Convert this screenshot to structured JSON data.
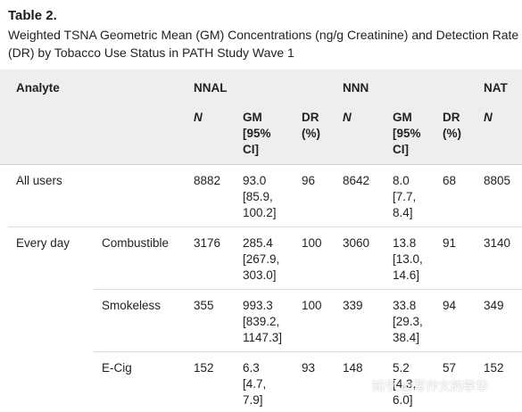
{
  "title": "Table 2.",
  "caption": "Weighted TSNA Geometric Mean (GM) Concentrations (ng/g Creatinine) and Detection Rate (DR) by Tobacco Use Status in PATH Study Wave 1",
  "header": {
    "analyte": "Analyte",
    "groups": [
      "NNAL",
      "NNN",
      "NAT"
    ],
    "sub": {
      "n": "N",
      "gm": "GM\n[95%\nCI]",
      "dr": "DR\n(%)"
    }
  },
  "rows": [
    {
      "label": "All users",
      "sublabel": "",
      "nnal": {
        "n": "8882",
        "gm": "93.0\n[85.9,\n100.2]",
        "dr": "96"
      },
      "nnn": {
        "n": "8642",
        "gm": "8.0\n[7.7,\n8.4]",
        "dr": "68"
      },
      "nat": {
        "n": "8805"
      }
    },
    {
      "label": "Every day",
      "sublabel": "Combustible",
      "nnal": {
        "n": "3176",
        "gm": "285.4\n[267.9,\n303.0]",
        "dr": "100"
      },
      "nnn": {
        "n": "3060",
        "gm": "13.8\n[13.0,\n14.6]",
        "dr": "91"
      },
      "nat": {
        "n": "3140"
      }
    },
    {
      "label": "",
      "sublabel": "Smokeless",
      "nnal": {
        "n": "355",
        "gm": "993.3\n[839.2,\n1147.3]",
        "dr": "100"
      },
      "nnn": {
        "n": "339",
        "gm": "33.8\n[29.3,\n38.4]",
        "dr": "94"
      },
      "nat": {
        "n": "349"
      }
    },
    {
      "label": "",
      "sublabel": "E-Cig",
      "nnal": {
        "n": "152",
        "gm": "6.3\n[4.7,\n7.9]",
        "dr": "93"
      },
      "nnn": {
        "n": "148",
        "gm": "5.2\n[4.3,\n6.0]",
        "dr": "57"
      },
      "nat": {
        "n": "152"
      }
    }
  ],
  "watermark": "知乎 @写作文的李华"
}
